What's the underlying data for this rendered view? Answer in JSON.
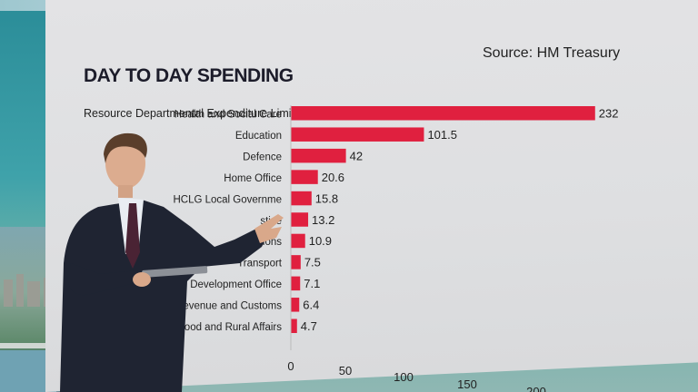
{
  "header": {
    "title": "DAY TO DAY SPENDING",
    "subtitle": "Resource Departmental Expenditure Limits for 2028/29",
    "source": "Source: HM Treasury"
  },
  "chart_data": {
    "type": "bar",
    "orientation": "horizontal",
    "title": "DAY TO DAY SPENDING",
    "subtitle": "Resource Departmental Expenditure Limits for 2028/29",
    "categories": [
      "Health and Social Care",
      "Education",
      "Defence",
      "Home Office",
      "MHCLG Local Government",
      "Justice",
      "Pensions",
      "Transport",
      "Foreign, Commonwealth and Development Office",
      "HM Revenue and Customs",
      "Environment, Food and Rural Affairs"
    ],
    "visible_labels": [
      "Health and Social Care",
      "Education",
      "Defence",
      "Home Office",
      "HCLG Local Governme",
      "stice",
      "Pensions",
      "Transport",
      "h and Development Office",
      "M Revenue and Customs",
      "nt, Food and Rural Affairs"
    ],
    "values": [
      232,
      101.5,
      42,
      20.6,
      15.8,
      13.2,
      10.9,
      7.5,
      7.1,
      6.4,
      4.7
    ],
    "value_labels": [
      "232",
      "101.5",
      "42",
      "20.6",
      "15.8",
      "13.2",
      "10.9",
      "7.5",
      "7.1",
      "6.4",
      "4.7"
    ],
    "xticks": [
      "0",
      "50",
      "100",
      "150",
      "200"
    ],
    "xlim": [
      0,
      240
    ],
    "bar_color": "#e0203f",
    "grid": false,
    "legend": "none"
  }
}
